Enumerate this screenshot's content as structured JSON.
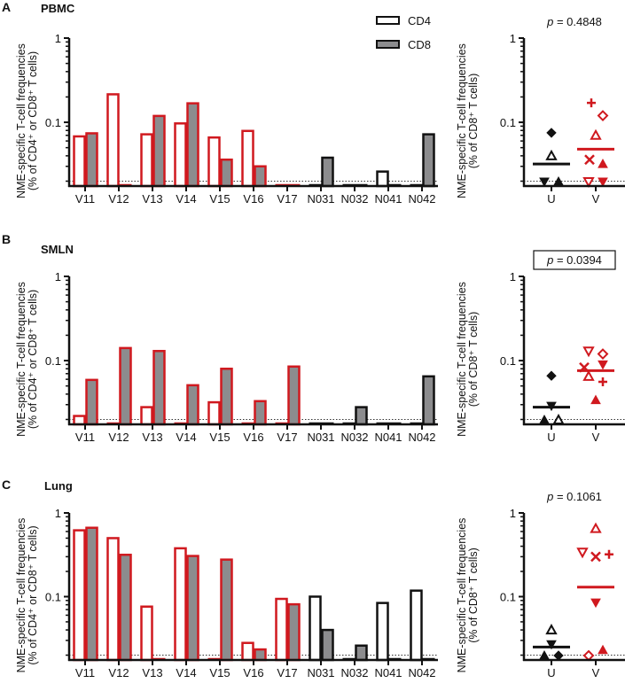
{
  "colors": {
    "vaccine": "#d0191f",
    "control": "#111111",
    "cd8_fill": "#8c8c8e",
    "cd4_fill": "#ffffff"
  },
  "legend": [
    {
      "label": "CD4",
      "subset": "CD4"
    },
    {
      "label": "CD8",
      "subset": "CD8"
    }
  ],
  "chart_data": [
    {
      "type": "bar",
      "panel": "A",
      "title": "PBMC",
      "ylabel_line1": "NME-specific T-cell frequencies",
      "ylabel_line2": "(% of CD4⁺ or CD8⁺ T cells)",
      "yscale": "log",
      "ylim": [
        0.0175,
        1
      ],
      "yticks": [
        "0.1",
        "1"
      ],
      "detection_limit": 0.02,
      "categories": [
        "V11",
        "V12",
        "V13",
        "V14",
        "V15",
        "V16",
        "V17",
        "N031",
        "N032",
        "N041",
        "N042"
      ],
      "series": [
        {
          "name": "CD4",
          "values": [
            0.068,
            0.215,
            0.072,
            0.097,
            0.066,
            0.079,
            null,
            null,
            null,
            0.026,
            null
          ]
        },
        {
          "name": "CD8",
          "values": [
            0.074,
            null,
            0.119,
            0.168,
            0.036,
            0.03,
            null,
            0.038,
            null,
            null,
            0.072
          ]
        }
      ]
    },
    {
      "type": "scatter",
      "panel": "A",
      "ylabel_line1": "NME-specific T-cell frequencies",
      "ylabel_line2": "(% of CD8⁺ T cells)",
      "yscale": "log",
      "ylim": [
        0.0175,
        1
      ],
      "yticks": [
        "0.1",
        "1"
      ],
      "detection_limit": 0.02,
      "pvalue": "p = 0.4848",
      "pvalue_boxed": false,
      "groups": [
        {
          "label": "U",
          "mean": 0.032,
          "points": [
            {
              "marker": "diamond",
              "filled": true,
              "value": 0.075
            },
            {
              "marker": "triangle-up",
              "filled": false,
              "value": 0.04
            },
            {
              "marker": "triangle-down",
              "filled": true,
              "value": 0.0175
            },
            {
              "marker": "triangle-up",
              "filled": true,
              "value": 0.0175
            }
          ]
        },
        {
          "label": "V",
          "mean": 0.048,
          "points": [
            {
              "marker": "plus",
              "filled": true,
              "value": 0.17
            },
            {
              "marker": "diamond",
              "filled": false,
              "value": 0.12
            },
            {
              "marker": "triangle-up",
              "filled": false,
              "value": 0.07
            },
            {
              "marker": "x",
              "filled": true,
              "value": 0.036
            },
            {
              "marker": "triangle-up",
              "filled": true,
              "value": 0.032
            },
            {
              "marker": "triangle-down",
              "filled": false,
              "value": 0.0175
            },
            {
              "marker": "triangle-down",
              "filled": true,
              "value": 0.0175
            }
          ]
        }
      ]
    },
    {
      "type": "bar",
      "panel": "B",
      "title": "SMLN",
      "ylabel_line1": "NME-specific T-cell frequencies",
      "ylabel_line2": "(% of CD4⁺ or CD8⁺ T cells)",
      "yscale": "log",
      "ylim": [
        0.0175,
        1
      ],
      "yticks": [
        "0.1",
        "1"
      ],
      "detection_limit": 0.02,
      "categories": [
        "V11",
        "V12",
        "V13",
        "V14",
        "V15",
        "V16",
        "V17",
        "N031",
        "N032",
        "N041",
        "N042"
      ],
      "series": [
        {
          "name": "CD4",
          "values": [
            0.022,
            null,
            0.028,
            null,
            0.032,
            null,
            null,
            null,
            null,
            null,
            null
          ]
        },
        {
          "name": "CD8",
          "values": [
            0.059,
            0.141,
            0.13,
            0.051,
            0.08,
            0.033,
            0.085,
            null,
            0.028,
            null,
            0.065
          ]
        }
      ]
    },
    {
      "type": "scatter",
      "panel": "B",
      "ylabel_line1": "NME-specific T-cell frequencies",
      "ylabel_line2": "(% of CD8⁺ T cells)",
      "yscale": "log",
      "ylim": [
        0.0175,
        1
      ],
      "yticks": [
        "0.1",
        "1"
      ],
      "detection_limit": 0.02,
      "pvalue": "p = 0.0394",
      "pvalue_boxed": true,
      "groups": [
        {
          "label": "U",
          "mean": 0.028,
          "points": [
            {
              "marker": "diamond",
              "filled": true,
              "value": 0.066
            },
            {
              "marker": "triangle-down",
              "filled": true,
              "value": 0.029
            },
            {
              "marker": "triangle-up",
              "filled": true,
              "value": 0.0175
            },
            {
              "marker": "triangle-up",
              "filled": false,
              "value": 0.0175
            }
          ]
        },
        {
          "label": "V",
          "mean": 0.076,
          "points": [
            {
              "marker": "triangle-down",
              "filled": false,
              "value": 0.13
            },
            {
              "marker": "diamond",
              "filled": false,
              "value": 0.12
            },
            {
              "marker": "triangle-down",
              "filled": true,
              "value": 0.09
            },
            {
              "marker": "x",
              "filled": true,
              "value": 0.083
            },
            {
              "marker": "triangle-up",
              "filled": false,
              "value": 0.065
            },
            {
              "marker": "plus",
              "filled": true,
              "value": 0.056
            },
            {
              "marker": "triangle-up",
              "filled": true,
              "value": 0.034
            }
          ]
        }
      ]
    },
    {
      "type": "bar",
      "panel": "C",
      "title": "Lung",
      "ylabel_line1": "NME-specific T-cell frequencies",
      "ylabel_line2": "(% of CD4⁺ or CD8⁺ T cells)",
      "yscale": "log",
      "ylim": [
        0.0175,
        1
      ],
      "yticks": [
        "0.1",
        "1"
      ],
      "detection_limit": 0.02,
      "categories": [
        "V11",
        "V12",
        "V13",
        "V14",
        "V15",
        "V16",
        "V17",
        "N031",
        "N032",
        "N041",
        "N042"
      ],
      "series": [
        {
          "name": "CD4",
          "values": [
            0.62,
            0.5,
            0.076,
            0.378,
            null,
            0.028,
            0.094,
            0.1,
            null,
            0.084,
            0.118
          ]
        },
        {
          "name": "CD8",
          "values": [
            0.665,
            0.316,
            null,
            0.306,
            0.277,
            0.0234,
            0.081,
            0.04,
            0.026,
            null,
            null
          ]
        }
      ]
    },
    {
      "type": "scatter",
      "panel": "C",
      "ylabel_line1": "NME-specific T-cell frequencies",
      "ylabel_line2": "(% of CD8⁺ T cells)",
      "yscale": "log",
      "ylim": [
        0.0175,
        1
      ],
      "yticks": [
        "0.1",
        "1"
      ],
      "detection_limit": 0.02,
      "pvalue": "p = 0.1061",
      "pvalue_boxed": false,
      "groups": [
        {
          "label": "U",
          "mean": 0.025,
          "points": [
            {
              "marker": "triangle-up",
              "filled": false,
              "value": 0.04
            },
            {
              "marker": "triangle-down",
              "filled": true,
              "value": 0.027
            },
            {
              "marker": "triangle-up",
              "filled": true,
              "value": 0.0175
            },
            {
              "marker": "diamond",
              "filled": true,
              "value": 0.0175
            }
          ]
        },
        {
          "label": "V",
          "mean": 0.13,
          "points": [
            {
              "marker": "triangle-up",
              "filled": false,
              "value": 0.65
            },
            {
              "marker": "triangle-down",
              "filled": false,
              "value": 0.34
            },
            {
              "marker": "x",
              "filled": true,
              "value": 0.3
            },
            {
              "marker": "plus",
              "filled": true,
              "value": 0.32
            },
            {
              "marker": "triangle-down",
              "filled": true,
              "value": 0.085
            },
            {
              "marker": "triangle-up",
              "filled": true,
              "value": 0.023
            },
            {
              "marker": "diamond",
              "filled": false,
              "value": 0.0175
            }
          ]
        }
      ]
    }
  ]
}
